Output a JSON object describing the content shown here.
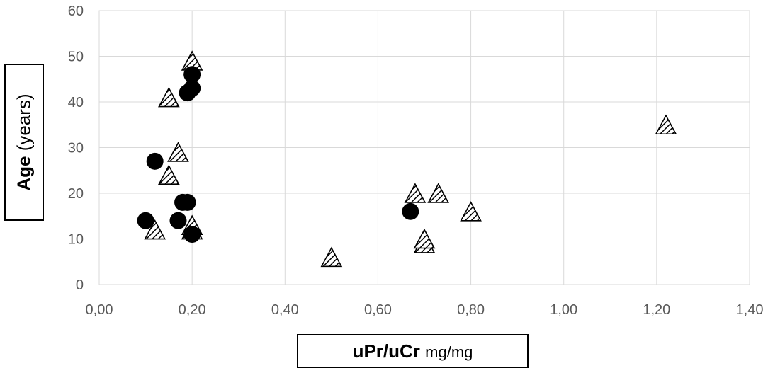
{
  "chart_data": {
    "type": "scatter",
    "title": "",
    "xlabel_main": "uPr/uCr",
    "xlabel_unit": "mg/mg",
    "ylabel_main": "Age",
    "ylabel_unit": "(years)",
    "xlim": [
      0,
      1.4
    ],
    "ylim": [
      0,
      60
    ],
    "x_ticks": [
      "0,00",
      "0,20",
      "0,40",
      "0,60",
      "0,80",
      "1,00",
      "1,20",
      "1,40"
    ],
    "y_ticks": [
      "0",
      "10",
      "20",
      "30",
      "40",
      "50",
      "60"
    ],
    "grid": true,
    "legend": "none",
    "series": [
      {
        "marker": "filled-circle",
        "color": "#000000",
        "points": [
          {
            "x": 0.1,
            "y": 14
          },
          {
            "x": 0.17,
            "y": 14
          },
          {
            "x": 0.12,
            "y": 27
          },
          {
            "x": 0.18,
            "y": 18
          },
          {
            "x": 0.19,
            "y": 18
          },
          {
            "x": 0.19,
            "y": 42
          },
          {
            "x": 0.2,
            "y": 43
          },
          {
            "x": 0.2,
            "y": 46
          },
          {
            "x": 0.2,
            "y": 11
          },
          {
            "x": 0.67,
            "y": 16
          }
        ]
      },
      {
        "marker": "hatched-triangle",
        "color": "#000000",
        "points": [
          {
            "x": 0.12,
            "y": 12
          },
          {
            "x": 0.15,
            "y": 24
          },
          {
            "x": 0.15,
            "y": 41
          },
          {
            "x": 0.17,
            "y": 29
          },
          {
            "x": 0.2,
            "y": 12
          },
          {
            "x": 0.2,
            "y": 13
          },
          {
            "x": 0.2,
            "y": 49
          },
          {
            "x": 0.5,
            "y": 6
          },
          {
            "x": 0.68,
            "y": 20
          },
          {
            "x": 0.7,
            "y": 9
          },
          {
            "x": 0.7,
            "y": 10
          },
          {
            "x": 0.73,
            "y": 20
          },
          {
            "x": 0.8,
            "y": 16
          },
          {
            "x": 1.22,
            "y": 35
          }
        ]
      }
    ]
  }
}
